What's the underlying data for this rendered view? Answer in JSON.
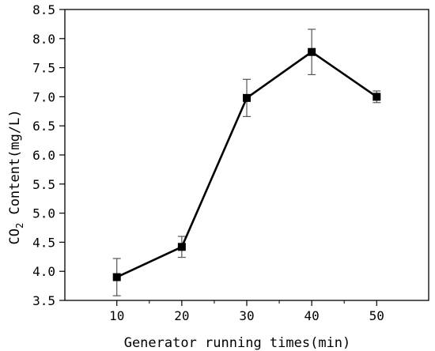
{
  "chart_data": {
    "type": "line",
    "title": "",
    "xlabel": "Generator running times(min)",
    "ylabel_prefix": "CO",
    "ylabel_subscript": "2",
    "ylabel_suffix": " Content(mg/L)",
    "x": [
      10,
      20,
      30,
      40,
      50
    ],
    "y": [
      3.9,
      4.42,
      6.98,
      7.77,
      7.0
    ],
    "yerr": [
      0.32,
      0.18,
      0.32,
      0.39,
      0.1
    ],
    "xlim": [
      2,
      58
    ],
    "ylim": [
      3.5,
      8.5
    ],
    "xticks": [
      "10",
      "20",
      "30",
      "40",
      "50"
    ],
    "yticks": [
      "3.5",
      "4.0",
      "4.5",
      "5.0",
      "5.5",
      "6.0",
      "6.5",
      "7.0",
      "7.5",
      "8.0",
      "8.5"
    ],
    "grid": false,
    "legend": "none",
    "marker": "square",
    "line_color": "#000000",
    "errorbar_color": "#555555"
  }
}
